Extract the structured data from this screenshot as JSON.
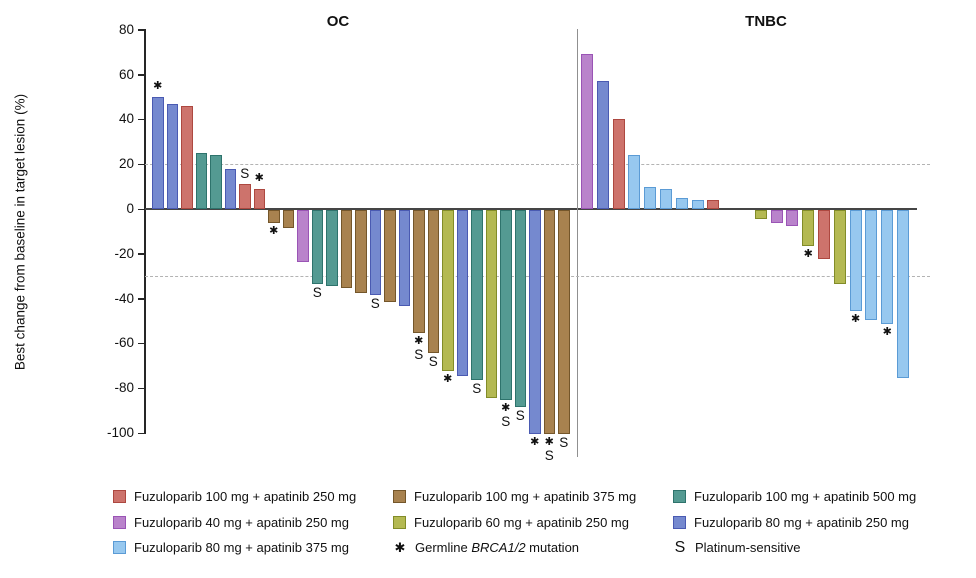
{
  "arms": {
    "F100A250": {
      "label": "Fuzuloparib 100 mg + apatinib 250 mg",
      "fill": "#cd736c",
      "stroke": "#ad4840"
    },
    "F100A375": {
      "label": "Fuzuloparib 100 mg + apatinib 375 mg",
      "fill": "#a8824f",
      "stroke": "#74562a"
    },
    "F100A500": {
      "label": "Fuzuloparib 100 mg + apatinib 500 mg",
      "fill": "#549a92",
      "stroke": "#2e736c"
    },
    "F40A250": {
      "label": "Fuzuloparib 40 mg + apatinib 250 mg",
      "fill": "#b983cb",
      "stroke": "#9a54b5"
    },
    "F60A250": {
      "label": "Fuzuloparib 60 mg + apatinib 250 mg",
      "fill": "#b4b952",
      "stroke": "#828c28"
    },
    "F80A250": {
      "label": "Fuzuloparib 80 mg + apatinib 250 mg",
      "fill": "#7589cf",
      "stroke": "#4a5ab2"
    },
    "F80A375": {
      "label": "Fuzuloparib 80 mg + apatinib 375 mg",
      "fill": "#97c8ef",
      "stroke": "#5b9bd5"
    }
  },
  "chart_data": {
    "type": "bar",
    "subtype": "waterfall",
    "ylabel": "Best change from baseline in target lesion (%)",
    "ylim": [
      -100,
      80
    ],
    "yticks": [
      80,
      60,
      40,
      20,
      0,
      -20,
      -40,
      -60,
      -80,
      -100
    ],
    "reference_lines": [
      20,
      -30
    ],
    "panels": [
      {
        "name": "OC",
        "bars": [
          {
            "arm": "F80A250",
            "value": 50,
            "marks": "*"
          },
          {
            "arm": "F80A250",
            "value": 47,
            "marks": ""
          },
          {
            "arm": "F100A250",
            "value": 46,
            "marks": ""
          },
          {
            "arm": "F100A500",
            "value": 25,
            "marks": ""
          },
          {
            "arm": "F100A500",
            "value": 24,
            "marks": ""
          },
          {
            "arm": "F80A250",
            "value": 18,
            "marks": ""
          },
          {
            "arm": "F100A250",
            "value": 11,
            "marks": "S"
          },
          {
            "arm": "F100A250",
            "value": 9,
            "marks": "*"
          },
          {
            "arm": "F100A375",
            "value": -6,
            "marks": "*"
          },
          {
            "arm": "F100A375",
            "value": -8,
            "marks": ""
          },
          {
            "arm": "F40A250",
            "value": -23,
            "marks": ""
          },
          {
            "arm": "F100A500",
            "value": -33,
            "marks": "S"
          },
          {
            "arm": "F100A500",
            "value": -34,
            "marks": ""
          },
          {
            "arm": "F100A375",
            "value": -35,
            "marks": ""
          },
          {
            "arm": "F100A375",
            "value": -37,
            "marks": ""
          },
          {
            "arm": "F80A250",
            "value": -38,
            "marks": "S"
          },
          {
            "arm": "F100A375",
            "value": -41,
            "marks": ""
          },
          {
            "arm": "F80A250",
            "value": -43,
            "marks": ""
          },
          {
            "arm": "F100A375",
            "value": -55,
            "marks": "*S"
          },
          {
            "arm": "F100A375",
            "value": -64,
            "marks": "S"
          },
          {
            "arm": "F60A250",
            "value": -72,
            "marks": "*"
          },
          {
            "arm": "F80A250",
            "value": -74,
            "marks": ""
          },
          {
            "arm": "F100A500",
            "value": -76,
            "marks": "S"
          },
          {
            "arm": "F60A250",
            "value": -84,
            "marks": ""
          },
          {
            "arm": "F100A500",
            "value": -85,
            "marks": "*S"
          },
          {
            "arm": "F100A500",
            "value": -88,
            "marks": "S"
          },
          {
            "arm": "F80A250",
            "value": -100,
            "marks": "*"
          },
          {
            "arm": "F100A375",
            "value": -100,
            "marks": "*S"
          },
          {
            "arm": "F100A375",
            "value": -100,
            "marks": "S"
          }
        ]
      },
      {
        "name": "TNBC",
        "bars": [
          {
            "arm": "F40A250",
            "value": 69,
            "marks": ""
          },
          {
            "arm": "F80A250",
            "value": 57,
            "marks": ""
          },
          {
            "arm": "F100A250",
            "value": 40,
            "marks": ""
          },
          {
            "arm": "F80A375",
            "value": 24,
            "marks": ""
          },
          {
            "arm": "F80A375",
            "value": 10,
            "marks": ""
          },
          {
            "arm": "F80A375",
            "value": 9,
            "marks": ""
          },
          {
            "arm": "F80A375",
            "value": 5,
            "marks": ""
          },
          {
            "arm": "F80A375",
            "value": 4,
            "marks": ""
          },
          {
            "arm": "F100A250",
            "value": 4,
            "marks": ""
          },
          {
            "arm": "",
            "value": 0,
            "marks": ""
          },
          {
            "arm": "",
            "value": 0,
            "marks": ""
          },
          {
            "arm": "F60A250",
            "value": -4,
            "marks": ""
          },
          {
            "arm": "F40A250",
            "value": -6,
            "marks": ""
          },
          {
            "arm": "F40A250",
            "value": -7,
            "marks": ""
          },
          {
            "arm": "F60A250",
            "value": -16,
            "marks": "*"
          },
          {
            "arm": "F100A250",
            "value": -22,
            "marks": ""
          },
          {
            "arm": "F60A250",
            "value": -33,
            "marks": ""
          },
          {
            "arm": "F80A375",
            "value": -45,
            "marks": "*"
          },
          {
            "arm": "F80A375",
            "value": -49,
            "marks": ""
          },
          {
            "arm": "F80A375",
            "value": -51,
            "marks": "*"
          },
          {
            "arm": "F80A375",
            "value": -75,
            "marks": ""
          }
        ]
      }
    ]
  },
  "legend": {
    "columns": [
      [
        {
          "arm": "F100A250"
        },
        {
          "arm": "F40A250"
        },
        {
          "arm": "F80A375"
        }
      ],
      [
        {
          "arm": "F100A375"
        },
        {
          "arm": "F60A250"
        },
        {
          "symbol": "*",
          "label_parts": [
            "Germline ",
            "BRCA1/2",
            " mutation"
          ]
        }
      ],
      [
        {
          "arm": "F100A500"
        },
        {
          "arm": "F80A250"
        },
        {
          "symbol": "S",
          "label": "Platinum-sensitive"
        }
      ]
    ]
  }
}
